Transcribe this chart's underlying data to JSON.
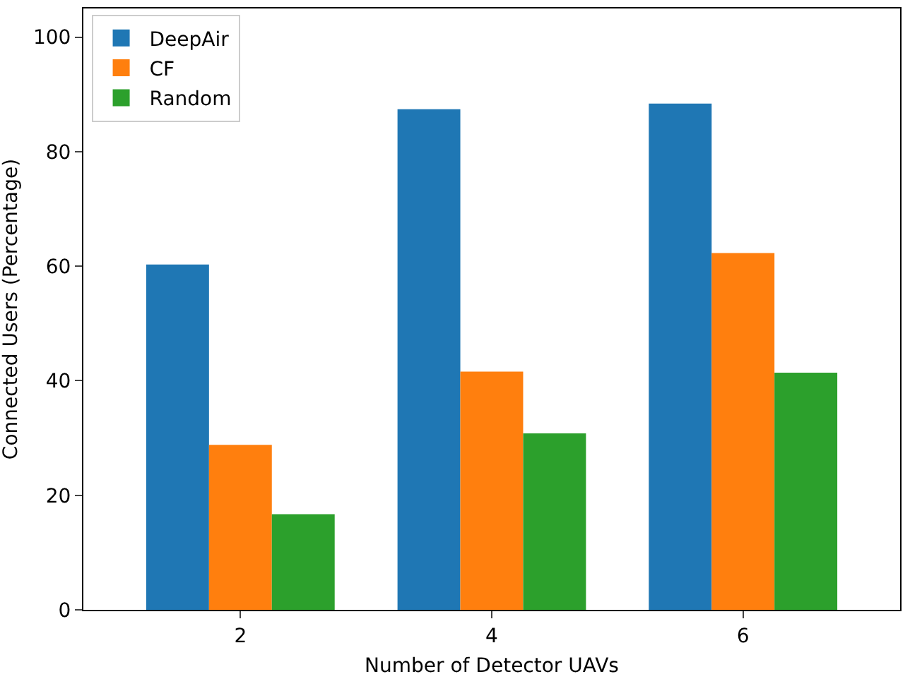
{
  "chart_data": {
    "type": "bar",
    "xlabel": "Number of Detector UAVs",
    "ylabel": "Connected Users (Percentage)",
    "categories": [
      "2",
      "4",
      "6"
    ],
    "series": [
      {
        "name": "DeepAir",
        "color": "#1f77b4",
        "values": [
          60.3,
          87.4,
          88.4
        ]
      },
      {
        "name": "CF",
        "color": "#ff7f0e",
        "values": [
          28.8,
          41.6,
          62.3
        ]
      },
      {
        "name": "Random",
        "color": "#2ca02c",
        "values": [
          16.7,
          30.8,
          41.4
        ]
      }
    ],
    "ylim": [
      0,
      105
    ],
    "yticks": [
      0,
      20,
      40,
      60,
      80,
      100
    ],
    "grid": false,
    "legend": "top left"
  }
}
